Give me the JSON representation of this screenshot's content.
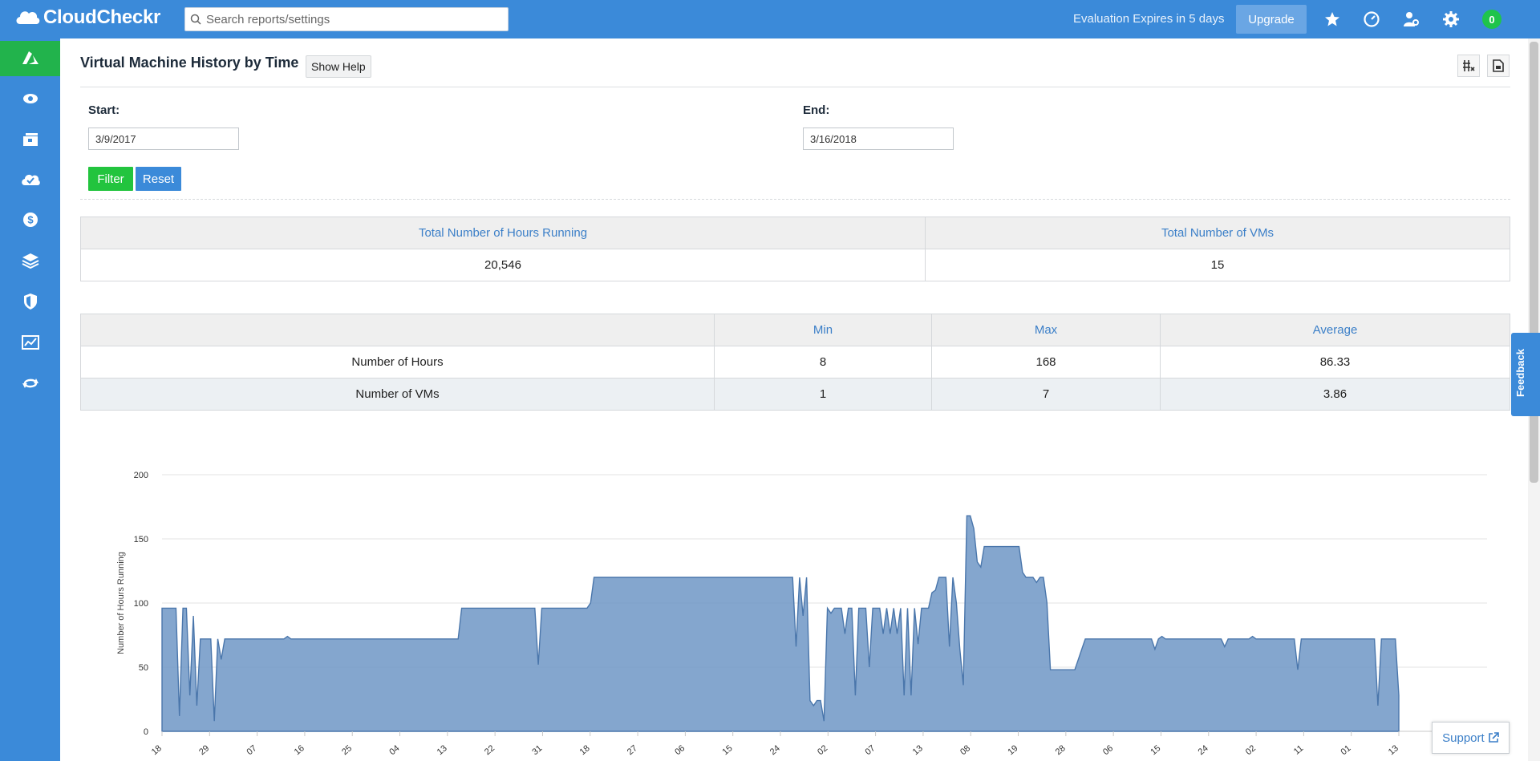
{
  "app": {
    "name": "CloudCheckr"
  },
  "search": {
    "placeholder": "Search reports/settings"
  },
  "header": {
    "evaluation_text": "Evaluation Expires in 5 days",
    "upgrade_label": "Upgrade",
    "notifications_count": "0"
  },
  "sidebar": {
    "items": [
      "azure-logo",
      "eye",
      "inventory",
      "cloud-check",
      "dollar",
      "layers",
      "shield",
      "chart",
      "refresh"
    ]
  },
  "page": {
    "title": "Virtual Machine History by Time",
    "help_label": "Show Help"
  },
  "filters": {
    "start_label": "Start:",
    "start_value": "3/9/2017",
    "end_label": "End:",
    "end_value": "3/16/2018",
    "filter_label": "Filter",
    "reset_label": "Reset"
  },
  "summary": {
    "headers": [
      "Total Number of Hours Running",
      "Total Number of VMs"
    ],
    "values": [
      "20,546",
      "15"
    ]
  },
  "stats": {
    "headers": [
      "",
      "Min",
      "Max",
      "Average"
    ],
    "rows": [
      [
        "Number of Hours",
        "8",
        "168",
        "86.33"
      ],
      [
        "Number of VMs",
        "1",
        "7",
        "3.86"
      ]
    ]
  },
  "chart_data": {
    "type": "area",
    "ylabel": "Number of Hours Running",
    "ylim": [
      0,
      200
    ],
    "yticks": [
      0,
      50,
      100,
      150,
      200
    ],
    "xtick_labels": [
      "18",
      "29",
      "07",
      "16",
      "25",
      "04",
      "13",
      "22",
      "31",
      "18",
      "27",
      "06",
      "15",
      "24",
      "02",
      "07",
      "13",
      "08",
      "19",
      "28",
      "06",
      "15",
      "24",
      "02",
      "11",
      "01",
      "13"
    ],
    "values": [
      96,
      96,
      96,
      96,
      96,
      12,
      96,
      96,
      28,
      90,
      20,
      72,
      72,
      72,
      72,
      8,
      72,
      56,
      72,
      72,
      72,
      72,
      72,
      72,
      72,
      72,
      72,
      72,
      72,
      72,
      72,
      72,
      72,
      72,
      72,
      72,
      74,
      72,
      72,
      72,
      72,
      72,
      72,
      72,
      72,
      72,
      72,
      72,
      72,
      72,
      72,
      72,
      72,
      72,
      72,
      72,
      72,
      72,
      72,
      72,
      72,
      72,
      72,
      72,
      72,
      72,
      72,
      72,
      72,
      72,
      72,
      72,
      72,
      72,
      72,
      72,
      72,
      72,
      72,
      72,
      72,
      72,
      72,
      72,
      72,
      72,
      96,
      96,
      96,
      96,
      96,
      96,
      96,
      96,
      96,
      96,
      96,
      96,
      96,
      96,
      96,
      96,
      96,
      96,
      96,
      96,
      96,
      96,
      52,
      96,
      96,
      96,
      96,
      96,
      96,
      96,
      96,
      96,
      96,
      96,
      96,
      96,
      96,
      100,
      120,
      120,
      120,
      120,
      120,
      120,
      120,
      120,
      120,
      120,
      120,
      120,
      120,
      120,
      120,
      120,
      120,
      120,
      120,
      120,
      120,
      120,
      120,
      120,
      120,
      120,
      120,
      120,
      120,
      120,
      120,
      120,
      120,
      120,
      120,
      120,
      120,
      120,
      120,
      120,
      120,
      120,
      120,
      120,
      120,
      120,
      120,
      120,
      120,
      120,
      120,
      120,
      120,
      120,
      120,
      120,
      120,
      120,
      66,
      120,
      90,
      120,
      24,
      20,
      24,
      24,
      8,
      96,
      92,
      96,
      96,
      96,
      76,
      96,
      96,
      28,
      96,
      96,
      96,
      50,
      96,
      96,
      96,
      76,
      96,
      76,
      96,
      76,
      96,
      28,
      96,
      28,
      96,
      68,
      96,
      96,
      96,
      108,
      110,
      120,
      120,
      120,
      66,
      120,
      100,
      64,
      36,
      168,
      168,
      158,
      132,
      128,
      144,
      144,
      144,
      144,
      144,
      144,
      144,
      144,
      144,
      144,
      144,
      124,
      120,
      120,
      120,
      116,
      120,
      120,
      100,
      48,
      48,
      48,
      48,
      48,
      48,
      48,
      48,
      56,
      64,
      72,
      72,
      72,
      72,
      72,
      72,
      72,
      72,
      72,
      72,
      72,
      72,
      72,
      72,
      72,
      72,
      72,
      72,
      72,
      72,
      64,
      72,
      74,
      72,
      72,
      72,
      72,
      72,
      72,
      72,
      72,
      72,
      72,
      72,
      72,
      72,
      72,
      72,
      72,
      72,
      66,
      72,
      72,
      72,
      72,
      72,
      72,
      72,
      74,
      72,
      72,
      72,
      72,
      72,
      72,
      72,
      72,
      72,
      72,
      72,
      72,
      48,
      72,
      72,
      72,
      72,
      72,
      72,
      72,
      72,
      72,
      72,
      72,
      72,
      72,
      72,
      72,
      72,
      72,
      72,
      72,
      72,
      72,
      72,
      20,
      72,
      72,
      72,
      72,
      72,
      28
    ],
    "series_color": "#6e96c6",
    "grid": true
  }
}
